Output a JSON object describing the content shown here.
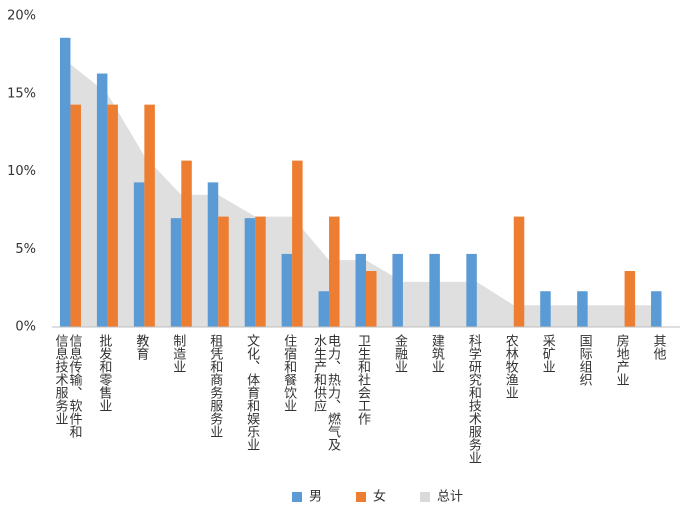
{
  "chart_data": {
    "type": "bar",
    "categories": [
      "信息传输、软件和\n信息技术服务业",
      "批发和零售业",
      "教育",
      "制造业",
      "租凭和商务服务业",
      "文化、体育和娱乐业",
      "住宿和餐饮业",
      "电力、热力、燃气及\n水生产和供应",
      "卫生和社会工作",
      "金融业",
      "建筑业",
      "科学研究和技术服务业",
      "农林牧渔业",
      "采矿业",
      "国际组织",
      "房地产业",
      "其他"
    ],
    "series": [
      {
        "name": "男",
        "type": "bar",
        "color": "#5b9bd5",
        "values": [
          18.6,
          16.3,
          9.3,
          7.0,
          9.3,
          7.0,
          4.7,
          2.3,
          4.7,
          4.7,
          4.7,
          4.7,
          0,
          2.3,
          2.3,
          0,
          2.3
        ]
      },
      {
        "name": "女",
        "type": "bar",
        "color": "#ed7d31",
        "values": [
          14.3,
          14.3,
          14.3,
          10.7,
          7.1,
          7.1,
          10.7,
          7.1,
          3.6,
          0,
          0,
          0,
          7.1,
          0,
          0,
          3.6,
          0
        ]
      },
      {
        "name": "总计",
        "type": "area",
        "color": "#d9d9d9",
        "values": [
          16.9,
          15.0,
          11.0,
          8.5,
          8.5,
          7.1,
          7.1,
          4.3,
          4.3,
          2.9,
          2.9,
          2.9,
          1.4,
          1.4,
          1.4,
          1.4,
          1.4
        ]
      }
    ],
    "ylim": [
      0,
      20
    ],
    "yticks": [
      {
        "value": 0,
        "label": "0%"
      },
      {
        "value": 5,
        "label": "5%"
      },
      {
        "value": 10,
        "label": "10%"
      },
      {
        "value": 15,
        "label": "15%"
      },
      {
        "value": 20,
        "label": "20%"
      }
    ],
    "grid": false,
    "legend": "bottom"
  }
}
